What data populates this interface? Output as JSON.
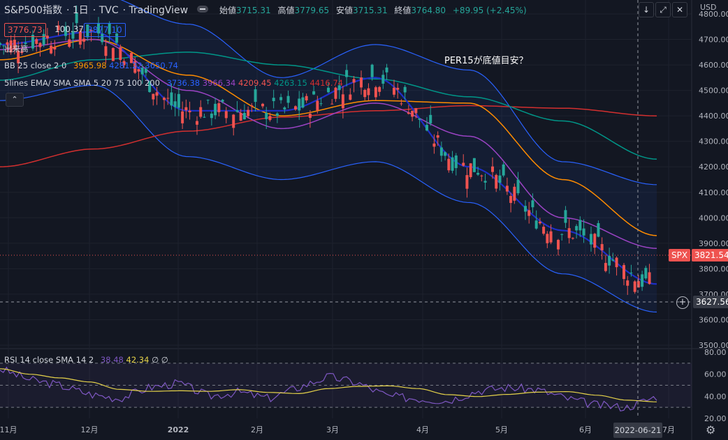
{
  "header": {
    "symbol": "S&P500指数",
    "interval": "1日",
    "exchange": "TVC",
    "source": "TradingView"
  },
  "ohlc": {
    "open_label": "始値",
    "open": "3715.31",
    "high_label": "高値",
    "high": "3779.65",
    "low_label": "安値",
    "low": "3715.31",
    "close_label": "終値",
    "close": "3764.80",
    "change": "+89.95 (+2.45%)"
  },
  "sell_price": "3776.73",
  "spread": "100.37",
  "buy_price": "3877.10",
  "volume_label": "出来高",
  "bb_legend": {
    "name": "BB 25 close 2 0",
    "v1": "3965.98",
    "v2": "4281.22",
    "v3": "3650.74"
  },
  "ma_legend": {
    "name": "5lines EMA/ SMA SMA 5 20 75 100 200",
    "v1": "3736.38",
    "v2": "3966.34",
    "v3": "4209.45",
    "v4": "4263.15",
    "v5": "4416.74"
  },
  "rsi_legend": {
    "name": "RSI 14 close SMA 14 2",
    "v1": "38.48",
    "v2": "42.34",
    "icons": "∅ ∅"
  },
  "annotation": "PER15が底値目安？",
  "currency": "USD",
  "spx_badge": {
    "label": "SPX",
    "value": "3821.54"
  },
  "crosshair_price": "3627.56",
  "crosshair_date": "2022-06-21",
  "colors": {
    "up": "#26a69a",
    "down": "#ef5350",
    "bg": "#131722",
    "bb": "#2962ff",
    "ema5": "#1e2fc8",
    "sma20": "#9b43c4",
    "sma75": "#ff8c00",
    "sma100": "#009688",
    "sma200": "#d32f2f",
    "rsi": "#7e57c2",
    "rsi_ma": "#e6d34a"
  },
  "chart_data": {
    "type": "candlestick",
    "x_labels": [
      "11月",
      "12月",
      "2022",
      "2月",
      "3月",
      "4月",
      "5月",
      "6月",
      "7月"
    ],
    "y_ticks": [
      3500,
      3600,
      3700,
      3800,
      3900,
      4000,
      4100,
      4200,
      4300,
      4400,
      4500,
      4600,
      4700,
      4800
    ],
    "ylim": [
      3500,
      4800
    ],
    "rsi_ticks": [
      20,
      40,
      60,
      80
    ],
    "rsi_bands": [
      30,
      50,
      70
    ],
    "series": [
      {
        "name": "SMA200",
        "values": [
          4200,
          4270,
          4340,
          4395,
          4420,
          4440,
          4430,
          4400
        ]
      },
      {
        "name": "SMA100",
        "values": [
          4540,
          4620,
          4650,
          4600,
          4545,
          4475,
          4380,
          4230
        ]
      },
      {
        "name": "SMA75",
        "values": [
          4620,
          4700,
          4560,
          4400,
          4460,
          4450,
          4150,
          3930
        ]
      },
      {
        "name": "SMA20",
        "values": [
          4660,
          4700,
          4500,
          4350,
          4450,
          4320,
          4000,
          3880
        ]
      },
      {
        "name": "EMA5",
        "values": [
          4680,
          4730,
          4420,
          4420,
          4550,
          4200,
          3950,
          3740
        ]
      }
    ],
    "rsi_values": [
      65,
      55,
      50,
      42,
      38,
      48,
      52,
      40,
      44,
      38,
      48,
      58,
      52,
      40,
      38,
      36,
      45,
      48,
      46,
      38,
      32,
      30,
      40
    ]
  }
}
